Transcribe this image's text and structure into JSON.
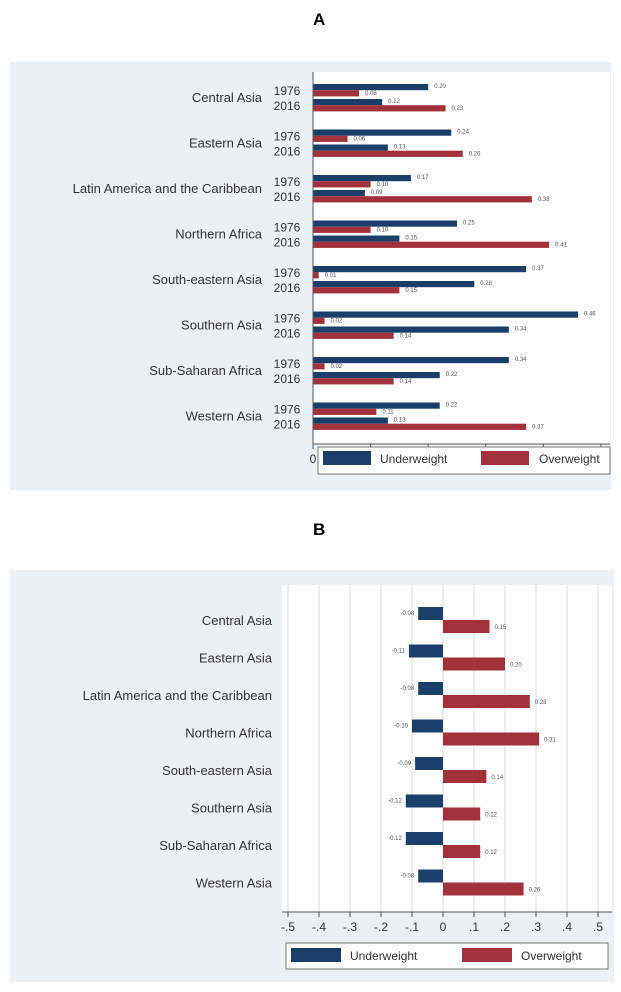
{
  "panel_a_letter": "A",
  "panel_b_letter": "B",
  "colors": {
    "underweight": "#1b3f6b",
    "overweight": "#a3313b",
    "panel_bg": "#eaf0f3",
    "plot_bg": "#ffffff"
  },
  "chart_data": [
    {
      "type": "bar",
      "orientation": "horizontal",
      "categories": [
        "Central Asia",
        "Eastern Asia",
        "Latin America and the Caribbean",
        "Northern Africa",
        "South-eastern Asia",
        "Southern Asia",
        "Sub-Saharan Africa",
        "Western Asia"
      ],
      "sub_groups": [
        "1976",
        "2016"
      ],
      "series": [
        {
          "name": "Underweight",
          "values_1976": [
            0.2,
            0.24,
            0.17,
            0.25,
            0.37,
            0.46,
            0.34,
            0.22
          ],
          "values_2016": [
            0.12,
            0.13,
            0.09,
            0.15,
            0.28,
            0.34,
            0.22,
            0.13
          ]
        },
        {
          "name": "Overweight",
          "values_1976": [
            0.08,
            0.06,
            0.1,
            0.1,
            0.01,
            0.02,
            0.02,
            0.11
          ],
          "values_2016": [
            0.23,
            0.26,
            0.38,
            0.41,
            0.15,
            0.14,
            0.14,
            0.37
          ]
        }
      ],
      "labels_1976": [
        [
          "0.20",
          "0.08"
        ],
        [
          "0.24",
          "0.06"
        ],
        [
          "0.17",
          "0.10"
        ],
        [
          "0.25",
          "0.10"
        ],
        [
          "0.37",
          "0.01"
        ],
        [
          "0.46",
          "0.02"
        ],
        [
          "0.34",
          "0.02"
        ],
        [
          "0.22",
          "0.11"
        ]
      ],
      "labels_2016": [
        [
          "0.12",
          "0.23"
        ],
        [
          "0.13",
          "0.26"
        ],
        [
          "0.09",
          "0.38"
        ],
        [
          "0.15",
          "0.41"
        ],
        [
          "0.28",
          "0.15"
        ],
        [
          "0.34",
          "0.14"
        ],
        [
          "0.22",
          "0.14"
        ],
        [
          "0.13",
          "0.37"
        ]
      ],
      "xlim": [
        0,
        0.5
      ],
      "xticks": [
        0,
        0.1,
        0.2,
        0.3,
        0.4,
        0.5
      ],
      "xtick_labels": [
        "0",
        ".1",
        ".2",
        ".3",
        ".4",
        ".5"
      ],
      "legend": [
        "Underweight",
        "Overweight"
      ],
      "legend_position": "bottom"
    },
    {
      "type": "bar",
      "orientation": "horizontal",
      "categories": [
        "Central Asia",
        "Eastern Asia",
        "Latin America and the Caribbean",
        "Northern Africa",
        "South-eastern Asia",
        "Southern Asia",
        "Sub-Saharan Africa",
        "Western Asia"
      ],
      "series": [
        {
          "name": "Underweight",
          "values": [
            -0.08,
            -0.11,
            -0.08,
            -0.1,
            -0.09,
            -0.12,
            -0.12,
            -0.08
          ],
          "labels": [
            "-0.08",
            "-0.11",
            "-0.08",
            "-0.10",
            "-0.09",
            "-0.12",
            "-0.12",
            "-0.08"
          ]
        },
        {
          "name": "Overweight",
          "values": [
            0.15,
            0.2,
            0.28,
            0.31,
            0.14,
            0.12,
            0.12,
            0.26
          ],
          "labels": [
            "0.15",
            "0.20",
            "0.28",
            "0.31",
            "0.14",
            "0.12",
            "0.12",
            "0.26"
          ]
        }
      ],
      "xlim": [
        -0.5,
        0.5
      ],
      "xticks": [
        -0.5,
        -0.4,
        -0.3,
        -0.2,
        -0.1,
        0,
        0.1,
        0.2,
        0.3,
        0.4,
        0.5
      ],
      "xtick_labels": [
        "-.5",
        "-.4",
        "-.3",
        "-.2",
        "-.1",
        "0",
        ".1",
        ".2",
        ".3",
        ".4",
        ".5"
      ],
      "grid": true,
      "legend": [
        "Underweight",
        "Overweight"
      ],
      "legend_position": "bottom"
    }
  ]
}
